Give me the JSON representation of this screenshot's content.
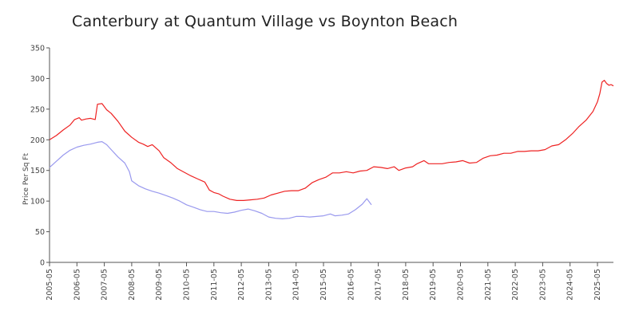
{
  "chart_data": {
    "type": "line",
    "title": "Canterbury at Quantum Village vs Boynton Beach",
    "ylabel": "Price Per Sq Ft",
    "xlabel": "",
    "ylim": [
      0,
      350
    ],
    "yticks": [
      "0",
      "50",
      "100",
      "150",
      "200",
      "250",
      "300",
      "350"
    ],
    "xticks": [
      "2005-05",
      "2006-05",
      "2007-05",
      "2008-05",
      "2009-05",
      "2010-05",
      "2011-05",
      "2012-05",
      "2013-05",
      "2014-05",
      "2015-05",
      "2016-05",
      "2017-05",
      "2018-05",
      "2019-05",
      "2020-05",
      "2021-05",
      "2022-05",
      "2023-05",
      "2024-05",
      "2025-05"
    ],
    "xstart": "2005-05",
    "xend": "2025-12",
    "grid": false,
    "legend": "none",
    "series": [
      {
        "color": "#ee2222",
        "points": [
          [
            "2005-05",
            200
          ],
          [
            "2005-08",
            207
          ],
          [
            "2005-11",
            216
          ],
          [
            "2006-02",
            224
          ],
          [
            "2006-04",
            233
          ],
          [
            "2006-06",
            236
          ],
          [
            "2006-07",
            232
          ],
          [
            "2006-09",
            234
          ],
          [
            "2006-11",
            235
          ],
          [
            "2007-01",
            233
          ],
          [
            "2007-02",
            258
          ],
          [
            "2007-04",
            259
          ],
          [
            "2007-06",
            249
          ],
          [
            "2007-08",
            243
          ],
          [
            "2007-11",
            230
          ],
          [
            "2008-02",
            214
          ],
          [
            "2008-05",
            204
          ],
          [
            "2008-08",
            196
          ],
          [
            "2008-10",
            193
          ],
          [
            "2008-12",
            189
          ],
          [
            "2009-02",
            192
          ],
          [
            "2009-05",
            182
          ],
          [
            "2009-07",
            171
          ],
          [
            "2009-10",
            163
          ],
          [
            "2010-01",
            153
          ],
          [
            "2010-04",
            147
          ],
          [
            "2010-07",
            141
          ],
          [
            "2010-10",
            136
          ],
          [
            "2011-01",
            131
          ],
          [
            "2011-03",
            118
          ],
          [
            "2011-05",
            114
          ],
          [
            "2011-07",
            112
          ],
          [
            "2011-09",
            108
          ],
          [
            "2011-12",
            103
          ],
          [
            "2012-03",
            101
          ],
          [
            "2012-06",
            101
          ],
          [
            "2012-09",
            102
          ],
          [
            "2012-12",
            103
          ],
          [
            "2013-03",
            105
          ],
          [
            "2013-06",
            110
          ],
          [
            "2013-09",
            113
          ],
          [
            "2013-12",
            116
          ],
          [
            "2014-03",
            117
          ],
          [
            "2014-06",
            117
          ],
          [
            "2014-09",
            121
          ],
          [
            "2014-12",
            130
          ],
          [
            "2015-03",
            135
          ],
          [
            "2015-06",
            139
          ],
          [
            "2015-09",
            146
          ],
          [
            "2015-12",
            146
          ],
          [
            "2016-03",
            148
          ],
          [
            "2016-06",
            146
          ],
          [
            "2016-09",
            149
          ],
          [
            "2016-12",
            150
          ],
          [
            "2017-03",
            156
          ],
          [
            "2017-06",
            155
          ],
          [
            "2017-09",
            153
          ],
          [
            "2017-12",
            156
          ],
          [
            "2018-02",
            150
          ],
          [
            "2018-05",
            154
          ],
          [
            "2018-08",
            156
          ],
          [
            "2018-10",
            161
          ],
          [
            "2019-01",
            166
          ],
          [
            "2019-03",
            161
          ],
          [
            "2019-06",
            161
          ],
          [
            "2019-09",
            161
          ],
          [
            "2019-12",
            163
          ],
          [
            "2020-03",
            164
          ],
          [
            "2020-06",
            166
          ],
          [
            "2020-09",
            162
          ],
          [
            "2020-12",
            163
          ],
          [
            "2021-03",
            170
          ],
          [
            "2021-06",
            174
          ],
          [
            "2021-09",
            175
          ],
          [
            "2021-12",
            178
          ],
          [
            "2022-03",
            178
          ],
          [
            "2022-06",
            181
          ],
          [
            "2022-09",
            181
          ],
          [
            "2022-12",
            182
          ],
          [
            "2023-03",
            182
          ],
          [
            "2023-06",
            184
          ],
          [
            "2023-09",
            190
          ],
          [
            "2023-12",
            192
          ],
          [
            "2024-03",
            200
          ],
          [
            "2024-06",
            210
          ],
          [
            "2024-09",
            222
          ],
          [
            "2024-12",
            232
          ],
          [
            "2025-03",
            246
          ],
          [
            "2025-05",
            262
          ],
          [
            "2025-06",
            275
          ],
          [
            "2025-07",
            294
          ],
          [
            "2025-08",
            297
          ],
          [
            "2025-09",
            292
          ],
          [
            "2025-10",
            289
          ],
          [
            "2025-11",
            290
          ],
          [
            "2025-12",
            288
          ]
        ]
      },
      {
        "color": "#9999ee",
        "points": [
          [
            "2005-05",
            155
          ],
          [
            "2005-08",
            165
          ],
          [
            "2005-11",
            175
          ],
          [
            "2006-02",
            183
          ],
          [
            "2006-05",
            188
          ],
          [
            "2006-08",
            191
          ],
          [
            "2006-11",
            193
          ],
          [
            "2007-02",
            196
          ],
          [
            "2007-04",
            197
          ],
          [
            "2007-06",
            192
          ],
          [
            "2007-08",
            184
          ],
          [
            "2007-11",
            172
          ],
          [
            "2008-02",
            162
          ],
          [
            "2008-04",
            148
          ],
          [
            "2008-05",
            133
          ],
          [
            "2008-08",
            125
          ],
          [
            "2008-11",
            120
          ],
          [
            "2009-02",
            116
          ],
          [
            "2009-05",
            113
          ],
          [
            "2009-08",
            109
          ],
          [
            "2009-11",
            105
          ],
          [
            "2010-02",
            100
          ],
          [
            "2010-05",
            94
          ],
          [
            "2010-08",
            90
          ],
          [
            "2010-11",
            86
          ],
          [
            "2011-02",
            83
          ],
          [
            "2011-05",
            83
          ],
          [
            "2011-08",
            81
          ],
          [
            "2011-11",
            80
          ],
          [
            "2012-02",
            82
          ],
          [
            "2012-05",
            85
          ],
          [
            "2012-08",
            87
          ],
          [
            "2012-11",
            84
          ],
          [
            "2013-02",
            80
          ],
          [
            "2013-05",
            74
          ],
          [
            "2013-08",
            72
          ],
          [
            "2013-11",
            71
          ],
          [
            "2014-02",
            72
          ],
          [
            "2014-05",
            75
          ],
          [
            "2014-08",
            75
          ],
          [
            "2014-11",
            74
          ],
          [
            "2015-02",
            75
          ],
          [
            "2015-05",
            76
          ],
          [
            "2015-08",
            79
          ],
          [
            "2015-10",
            76
          ],
          [
            "2016-01",
            77
          ],
          [
            "2016-04",
            79
          ],
          [
            "2016-07",
            86
          ],
          [
            "2016-10",
            95
          ],
          [
            "2016-12",
            104
          ],
          [
            "2017-02",
            94
          ]
        ]
      }
    ]
  }
}
